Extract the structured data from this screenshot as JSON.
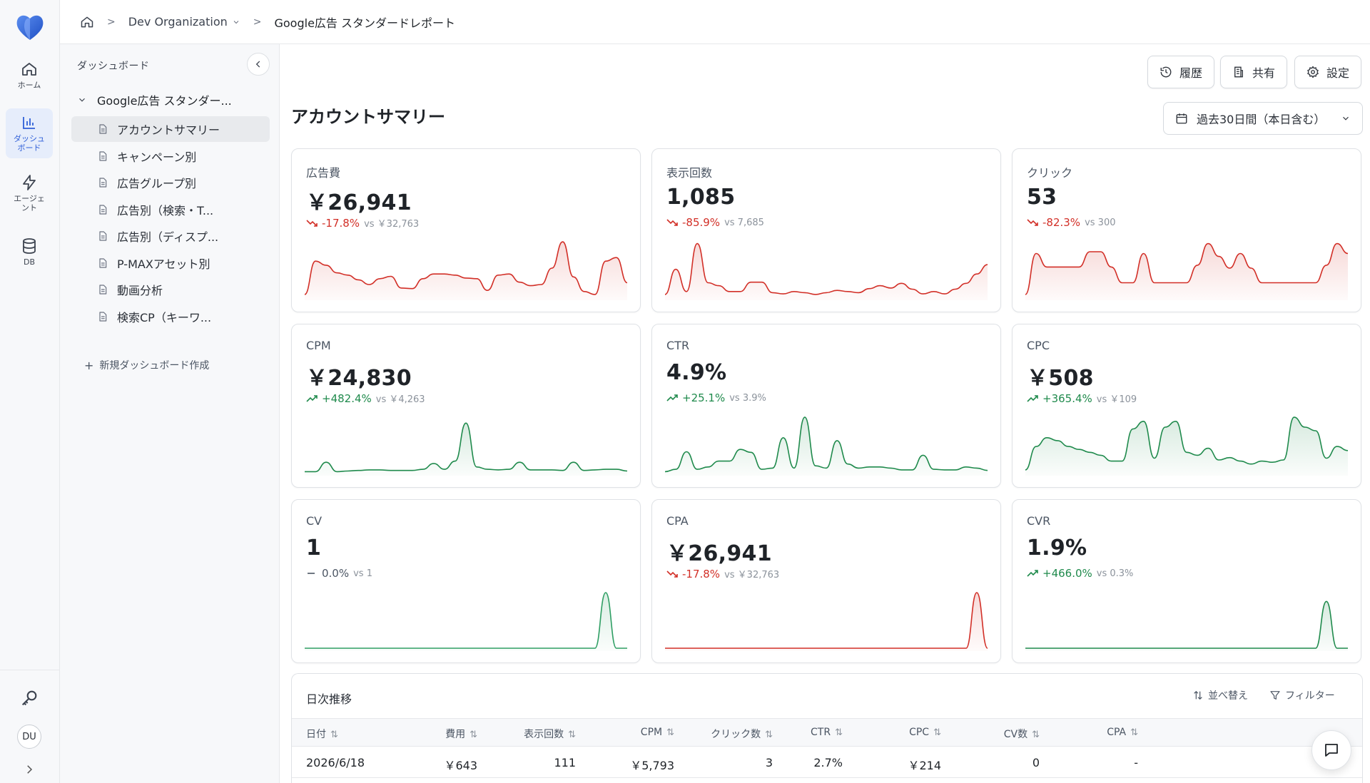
{
  "rail": {
    "items": [
      {
        "key": "home",
        "label": "ホーム",
        "icon": "home-icon"
      },
      {
        "key": "dashboard",
        "label": "ダッシュボード",
        "icon": "bar-chart-icon",
        "active": true
      },
      {
        "key": "agent",
        "label": "エージェント",
        "icon": "lightning-icon"
      },
      {
        "key": "db",
        "label": "DB",
        "icon": "database-icon"
      }
    ],
    "avatar": "DU"
  },
  "breadcrumb": {
    "org": "Dev Organization",
    "current": "Google広告 スタンダードレポート"
  },
  "sidebar": {
    "heading": "ダッシュボード",
    "root": "Google広告 スタンダー...",
    "items": [
      {
        "label": "アカウントサマリー",
        "active": true
      },
      {
        "label": "キャンペーン別"
      },
      {
        "label": "広告グループ別"
      },
      {
        "label": "広告別（検索・T..."
      },
      {
        "label": "広告別（ディスプ..."
      },
      {
        "label": "P-MAXアセット別"
      },
      {
        "label": "動画分析"
      },
      {
        "label": "検索CP（キーワ..."
      }
    ],
    "new_dashboard": "新規ダッシュボード作成"
  },
  "toolbar": {
    "history": "履歴",
    "share": "共有",
    "settings": "設定"
  },
  "page": {
    "title": "アカウントサマリー",
    "date_range": "過去30日間（本日含む）"
  },
  "colors": {
    "down": "#d22f27",
    "up": "#1f8a4c",
    "flat": "#2e9e63",
    "accent": "#2f5fd8"
  },
  "cards": [
    {
      "label": "広告費",
      "value": "￥26,941",
      "delta": "-17.8%",
      "vs": "vs ￥32,763",
      "trend": "down",
      "spark": [
        0.05,
        0.62,
        0.55,
        0.42,
        0.38,
        0.3,
        0.22,
        0.32,
        0.36,
        0.16,
        0.15,
        0.32,
        0.4,
        0.4,
        0.38,
        0.33,
        0.32,
        0.12,
        0.38,
        0.4,
        0.26,
        0.2,
        0.22,
        0.5,
        0.95,
        0.35,
        0.1,
        0.05,
        0.62,
        0.68,
        0.25
      ]
    },
    {
      "label": "表示回数",
      "value": "1,085",
      "delta": "-85.9%",
      "vs": "vs 7,685",
      "trend": "down",
      "spark": [
        0.05,
        0.48,
        0.1,
        0.92,
        0.25,
        0.2,
        0.1,
        0.1,
        0.26,
        0.26,
        0.08,
        0.06,
        0.1,
        0.08,
        0.05,
        0.08,
        0.12,
        0.1,
        0.08,
        0.15,
        0.2,
        0.16,
        0.24,
        0.14,
        0.06,
        0.1,
        0.06,
        0.14,
        0.24,
        0.4,
        0.56
      ]
    },
    {
      "label": "クリック",
      "value": "53",
      "delta": "-82.3%",
      "vs": "vs 300",
      "trend": "down",
      "spark": [
        0.05,
        0.75,
        0.52,
        0.52,
        0.52,
        0.52,
        0.78,
        0.78,
        0.52,
        0.25,
        0.25,
        0.75,
        0.25,
        0.25,
        0.25,
        0.25,
        0.55,
        0.92,
        0.7,
        0.5,
        0.75,
        0.5,
        0.25,
        0.25,
        0.25,
        0.25,
        0.25,
        0.25,
        0.55,
        0.92,
        0.75
      ]
    },
    {
      "label": "CPM",
      "value": "￥24,830",
      "delta": "+482.4%",
      "vs": "vs ￥4,263",
      "trend": "up",
      "spark": [
        0.02,
        0.02,
        0.18,
        0.02,
        0.03,
        0.04,
        0.05,
        0.05,
        0.04,
        0.04,
        0.04,
        0.06,
        0.16,
        0.06,
        0.2,
        0.85,
        0.1,
        0.06,
        0.05,
        0.06,
        0.18,
        0.05,
        0.05,
        0.05,
        0.04,
        0.18,
        0.04,
        0.05,
        0.06,
        0.06,
        0.03
      ]
    },
    {
      "label": "CTR",
      "value": "4.9%",
      "delta": "+25.1%",
      "vs": "vs 3.9%",
      "trend": "up",
      "spark": [
        0.02,
        0.06,
        0.36,
        0.06,
        0.1,
        0.2,
        0.2,
        0.4,
        0.35,
        0.06,
        0.08,
        0.6,
        0.08,
        0.95,
        0.12,
        0.08,
        0.55,
        0.15,
        0.08,
        0.1,
        0.1,
        0.08,
        0.05,
        0.05,
        0.3,
        0.06,
        0.05,
        0.05,
        0.1,
        0.08,
        0.04
      ]
    },
    {
      "label": "CPC",
      "value": "￥508",
      "delta": "+365.4%",
      "vs": "vs ￥109",
      "trend": "up",
      "spark": [
        0.05,
        0.45,
        0.6,
        0.55,
        0.45,
        0.4,
        0.35,
        0.3,
        0.2,
        0.2,
        0.75,
        0.88,
        0.25,
        0.78,
        0.88,
        0.35,
        0.3,
        0.42,
        0.22,
        0.26,
        0.2,
        0.15,
        0.2,
        0.18,
        0.22,
        0.95,
        0.78,
        0.72,
        0.25,
        0.45,
        0.38
      ]
    },
    {
      "label": "CV",
      "value": "1",
      "delta": "0.0%",
      "vs": "vs 1",
      "trend": "flat",
      "spark": [
        0,
        0,
        0,
        0,
        0,
        0,
        0,
        0,
        0,
        0,
        0,
        0,
        0,
        0,
        0,
        0,
        0,
        0,
        0,
        0,
        0,
        0,
        0,
        0,
        0,
        0,
        0,
        0,
        0.95,
        0,
        0
      ]
    },
    {
      "label": "CPA",
      "value": "￥26,941",
      "delta": "-17.8%",
      "vs": "vs ￥32,763",
      "trend": "down",
      "spark": [
        0,
        0,
        0,
        0,
        0,
        0,
        0,
        0,
        0,
        0,
        0,
        0,
        0,
        0,
        0,
        0,
        0,
        0,
        0,
        0,
        0,
        0,
        0,
        0,
        0,
        0,
        0,
        0,
        0,
        0.95,
        0
      ]
    },
    {
      "label": "CVR",
      "value": "1.9%",
      "delta": "+466.0%",
      "vs": "vs 0.3%",
      "trend": "up",
      "spark": [
        0,
        0,
        0,
        0,
        0,
        0,
        0,
        0,
        0,
        0,
        0,
        0,
        0,
        0,
        0,
        0,
        0,
        0,
        0,
        0,
        0,
        0,
        0,
        0,
        0,
        0,
        0,
        0,
        0.8,
        0,
        0
      ]
    }
  ],
  "table": {
    "title": "日次推移",
    "sort_label": "並べ替え",
    "filter_label": "フィルター",
    "columns": [
      "日付",
      "費用",
      "表示回数",
      "CPM",
      "クリック数",
      "CTR",
      "CPC",
      "CV数",
      "CPA"
    ],
    "rows": [
      [
        "2026/6/18",
        "￥643",
        "111",
        "￥5,793",
        "3",
        "2.7%",
        "￥214",
        "0",
        "-"
      ]
    ]
  }
}
